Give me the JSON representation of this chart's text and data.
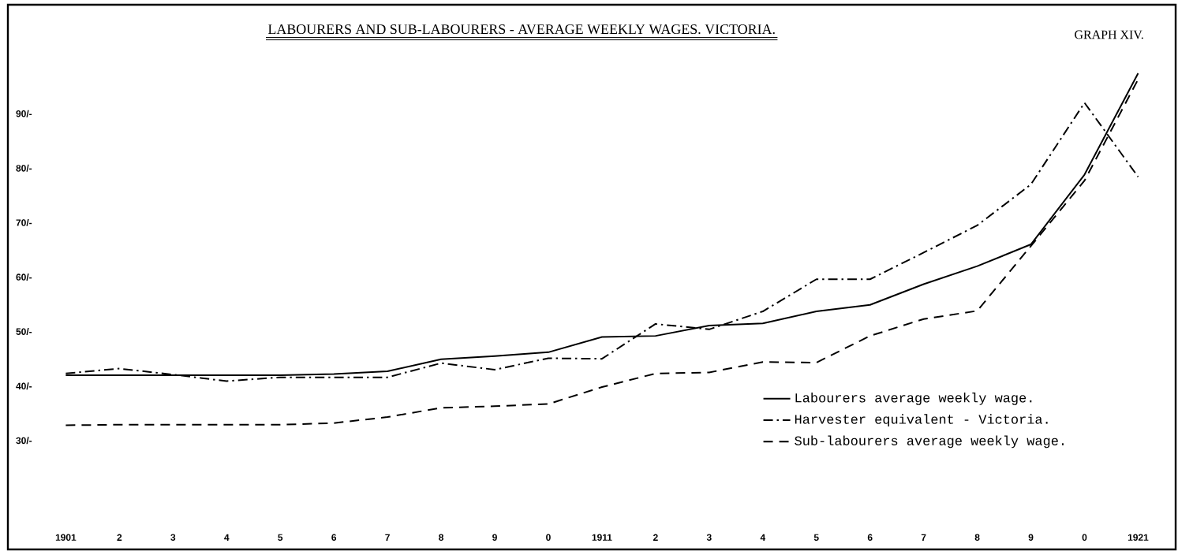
{
  "chart_data": {
    "type": "line",
    "title": "LABOURERS AND SUB-LABOURERS - AVERAGE WEEKLY WAGES.   VICTORIA.",
    "annotations": [
      "GRAPH XIV."
    ],
    "categories": [
      "1901",
      "2",
      "3",
      "4",
      "5",
      "6",
      "7",
      "8",
      "9",
      "0",
      "1911",
      "2",
      "3",
      "4",
      "5",
      "6",
      "7",
      "8",
      "9",
      "0",
      "1921"
    ],
    "series": [
      {
        "name": "Labourers average weekly wage.",
        "color": "#000000",
        "line_style": "solid",
        "values": [
          42,
          42,
          42,
          42,
          42,
          42.2,
          42.7,
          44.9,
          45.5,
          46.2,
          49,
          49.2,
          51.1,
          51.5,
          53.7,
          54.9,
          58.7,
          62,
          66,
          78.8,
          97.4
        ]
      },
      {
        "name": "Harvester equivalent - Victoria.",
        "color": "#000000",
        "line_style": "dashdot",
        "values": [
          42.3,
          43.2,
          42.1,
          40.9,
          41.6,
          41.6,
          41.6,
          44.2,
          43,
          45.1,
          45,
          51.4,
          50.4,
          53.7,
          59.6,
          59.6,
          64.5,
          69.5,
          77,
          92,
          78.4
        ]
      },
      {
        "name": "Sub-labourers average weekly wage.",
        "color": "#000000",
        "line_style": "dashed",
        "values": [
          32.8,
          32.9,
          32.9,
          32.9,
          32.9,
          33.2,
          34.3,
          36,
          36.3,
          36.7,
          39.8,
          42.3,
          42.5,
          44.4,
          44.3,
          49.2,
          52.3,
          53.8,
          65.7,
          77.7,
          96.3
        ]
      }
    ],
    "ylim": [
      10,
      110
    ],
    "yticks": [
      {
        "value": 30,
        "label": "30/-"
      },
      {
        "value": 40,
        "label": "40/-"
      },
      {
        "value": 50,
        "label": "50/-"
      },
      {
        "value": 60,
        "label": "60/-"
      },
      {
        "value": 70,
        "label": "70/-"
      },
      {
        "value": 80,
        "label": "80/-"
      },
      {
        "value": 90,
        "label": "90/-"
      }
    ],
    "legend": "bottom right",
    "grid": false,
    "marker": "none"
  }
}
